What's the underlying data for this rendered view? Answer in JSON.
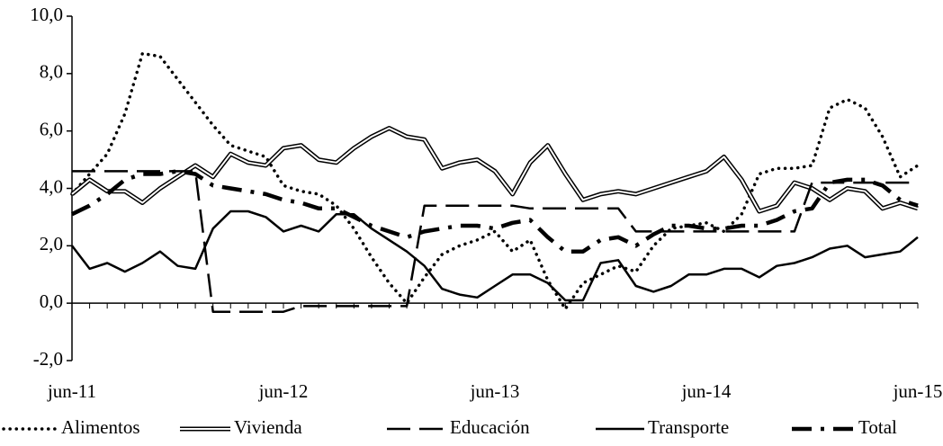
{
  "chart_data": {
    "type": "line",
    "categories": [
      "jun-11",
      null,
      null,
      null,
      null,
      null,
      null,
      null,
      null,
      null,
      null,
      null,
      "jun-12",
      null,
      null,
      null,
      null,
      null,
      null,
      null,
      null,
      null,
      null,
      null,
      "jun-13",
      null,
      null,
      null,
      null,
      null,
      null,
      null,
      null,
      null,
      null,
      null,
      "jun-14",
      null,
      null,
      null,
      null,
      null,
      null,
      null,
      null,
      null,
      null,
      null,
      "jun-15"
    ],
    "ylim": [
      -2,
      10
    ],
    "yticks": [
      {
        "value": -2,
        "label": "-2,0"
      },
      {
        "value": 0,
        "label": "0,0"
      },
      {
        "value": 2,
        "label": "2,0"
      },
      {
        "value": 4,
        "label": "4,0"
      },
      {
        "value": 6,
        "label": "6,0"
      },
      {
        "value": 8,
        "label": "8,0"
      },
      {
        "value": 10,
        "label": "10,0"
      }
    ],
    "legend": "bottom",
    "series": [
      {
        "name": "Alimentos",
        "color": "#000000",
        "style": "dotted",
        "values": [
          3.8,
          4.5,
          5.2,
          6.6,
          8.7,
          8.6,
          7.8,
          7.0,
          6.2,
          5.5,
          5.3,
          5.1,
          4.1,
          3.9,
          3.8,
          3.4,
          2.6,
          1.6,
          0.7,
          0.0,
          0.9,
          1.7,
          2.0,
          2.2,
          2.5,
          1.8,
          2.2,
          0.8,
          -0.2,
          0.7,
          1.0,
          1.3,
          1.1,
          2.0,
          2.6,
          2.7,
          2.8,
          2.5,
          3.1,
          4.5,
          4.7,
          4.7,
          4.8,
          6.8,
          7.1,
          6.8,
          5.8,
          4.4,
          4.8
        ]
      },
      {
        "name": "Vivienda",
        "color": "#000000",
        "style": "double",
        "values": [
          3.8,
          4.3,
          3.9,
          3.9,
          3.5,
          4.0,
          4.4,
          4.8,
          4.4,
          5.2,
          4.9,
          4.8,
          5.4,
          5.5,
          5.0,
          4.9,
          5.4,
          5.8,
          6.1,
          5.8,
          5.7,
          4.7,
          4.9,
          5.0,
          4.6,
          3.8,
          4.9,
          5.5,
          4.5,
          3.6,
          3.8,
          3.9,
          3.8,
          4.0,
          4.2,
          4.4,
          4.6,
          5.1,
          4.3,
          3.2,
          3.4,
          4.2,
          4.0,
          3.6,
          4.0,
          3.9,
          3.3,
          3.5,
          3.3
        ]
      },
      {
        "name": "Educación",
        "color": "#000000",
        "style": "dashed",
        "values": [
          4.6,
          4.6,
          4.6,
          4.6,
          4.6,
          4.6,
          4.6,
          4.6,
          -0.3,
          -0.3,
          -0.3,
          -0.3,
          -0.3,
          -0.1,
          -0.1,
          -0.1,
          -0.1,
          -0.1,
          -0.1,
          -0.1,
          3.4,
          3.4,
          3.4,
          3.4,
          3.4,
          3.4,
          3.3,
          3.3,
          3.3,
          3.3,
          3.3,
          3.3,
          2.5,
          2.5,
          2.5,
          2.5,
          2.5,
          2.5,
          2.5,
          2.5,
          2.5,
          2.5,
          4.2,
          4.2,
          4.2,
          4.2,
          4.2,
          4.2,
          4.2
        ]
      },
      {
        "name": "Transporte",
        "color": "#000000",
        "style": "solid",
        "values": [
          2.0,
          1.2,
          1.4,
          1.1,
          1.4,
          1.8,
          1.3,
          1.2,
          2.6,
          3.2,
          3.2,
          3.0,
          2.5,
          2.7,
          2.5,
          3.1,
          3.1,
          2.6,
          2.2,
          1.8,
          1.3,
          0.5,
          0.3,
          0.2,
          0.6,
          1.0,
          1.0,
          0.7,
          0.1,
          0.1,
          1.4,
          1.5,
          0.6,
          0.4,
          0.6,
          1.0,
          1.0,
          1.2,
          1.2,
          0.9,
          1.3,
          1.4,
          1.6,
          1.9,
          2.0,
          1.6,
          1.7,
          1.8,
          2.3
        ]
      },
      {
        "name": "Total",
        "color": "#000000",
        "style": "dashdot",
        "values": [
          3.1,
          3.4,
          3.8,
          4.3,
          4.5,
          4.5,
          4.6,
          4.5,
          4.1,
          4.0,
          3.9,
          3.8,
          3.6,
          3.5,
          3.3,
          3.3,
          3.0,
          2.7,
          2.5,
          2.3,
          2.5,
          2.6,
          2.7,
          2.7,
          2.6,
          2.8,
          2.9,
          2.3,
          1.8,
          1.8,
          2.2,
          2.3,
          2.0,
          2.4,
          2.7,
          2.7,
          2.6,
          2.6,
          2.7,
          2.7,
          2.9,
          3.2,
          3.3,
          4.2,
          4.3,
          4.3,
          4.1,
          3.6,
          3.4
        ]
      }
    ]
  }
}
